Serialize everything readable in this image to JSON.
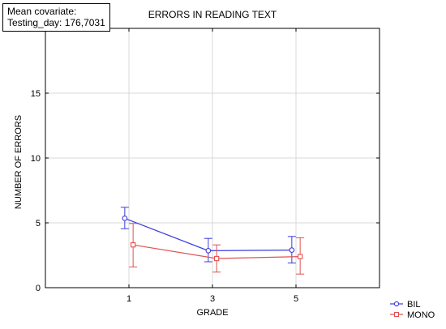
{
  "covariate_box": {
    "line1": "Mean covariate:",
    "line2": "Testing_day: 176,7031"
  },
  "chart_data": {
    "type": "line",
    "title": "ERRORS IN READING TEXT",
    "xlabel": "GRADE",
    "ylabel": "NUMBER OF ERRORS",
    "x": [
      1,
      3,
      5
    ],
    "x_tick_labels": [
      "1",
      "3",
      "5"
    ],
    "xlim": [
      -1,
      7
    ],
    "ylim": [
      0,
      20
    ],
    "y_ticks": [
      0,
      5,
      10,
      15,
      20
    ],
    "grid": true,
    "legend_position": "bottom-right",
    "series": [
      {
        "name": "BIL",
        "color": "#3b3bde",
        "marker": "circle",
        "values": [
          5.35,
          2.85,
          2.9
        ],
        "err_low": [
          4.55,
          2.0,
          1.9
        ],
        "err_high": [
          6.2,
          3.8,
          3.95
        ]
      },
      {
        "name": "MONO",
        "color": "#e05050",
        "marker": "square",
        "values": [
          3.3,
          2.25,
          2.4
        ],
        "err_low": [
          1.6,
          1.2,
          1.05
        ],
        "err_high": [
          4.95,
          3.3,
          3.85
        ]
      }
    ]
  }
}
